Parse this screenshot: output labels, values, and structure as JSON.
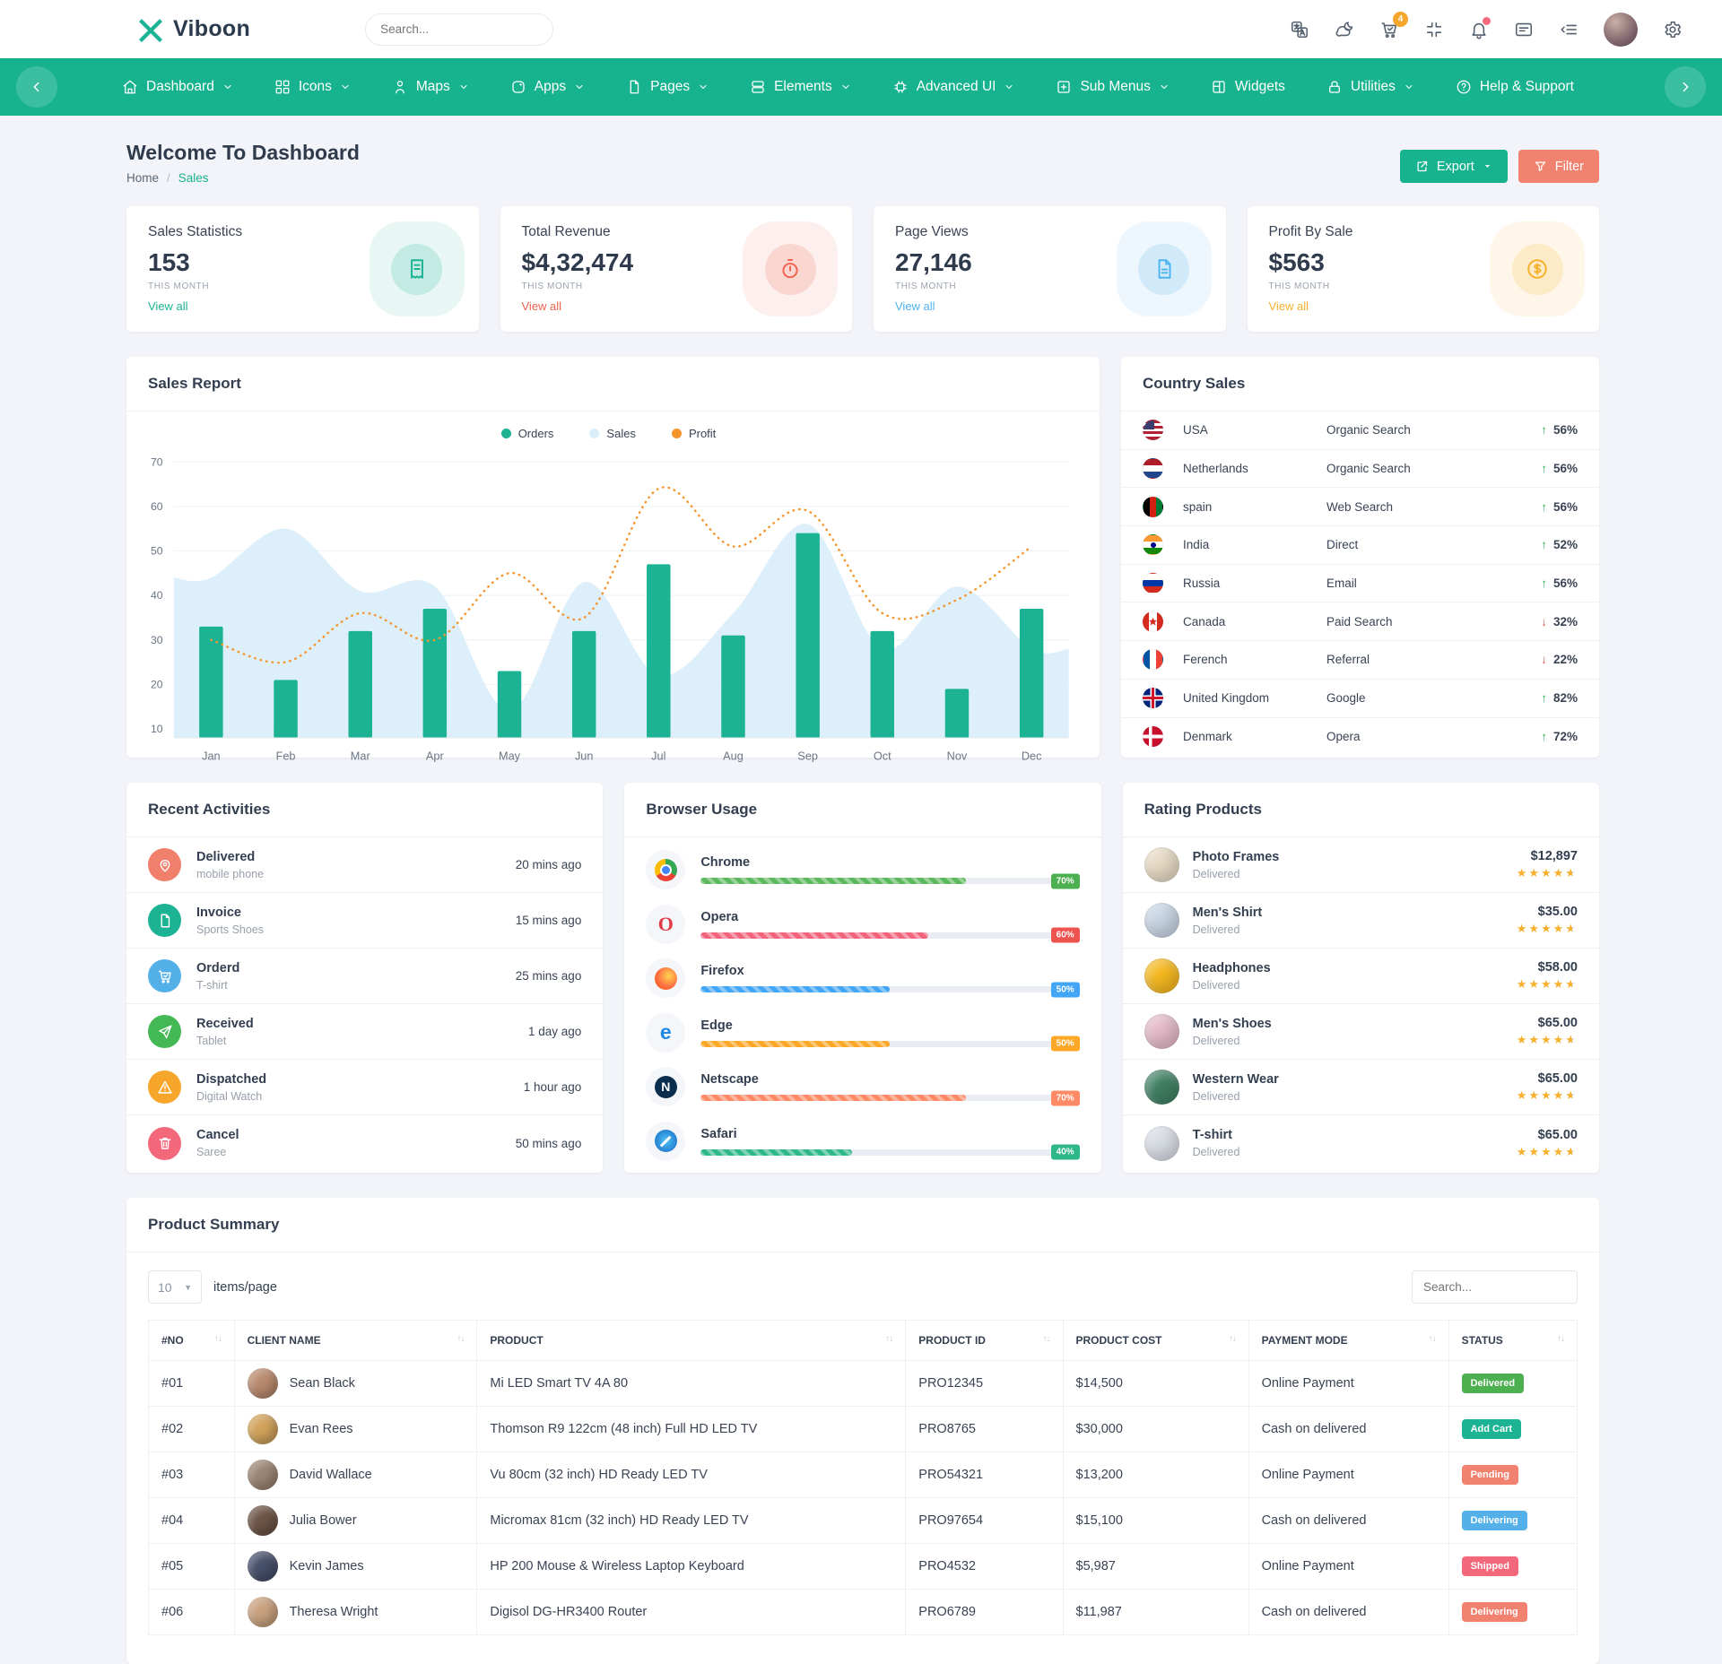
{
  "header": {
    "logo_text": "Viboon",
    "search_placeholder": "Search...",
    "actions": [
      {
        "name": "translate",
        "label": "translate-icon"
      },
      {
        "name": "cloud-moon",
        "label": "dark-mode-icon"
      },
      {
        "name": "cart",
        "label": "cart-icon",
        "badge": "4"
      },
      {
        "name": "compress",
        "label": "fullscreen-icon"
      },
      {
        "name": "bell",
        "label": "notifications-icon",
        "dot": true
      },
      {
        "name": "card",
        "label": "messages-icon"
      },
      {
        "name": "list-chev",
        "label": "sidebar-toggle-icon"
      },
      {
        "name": "avatar",
        "label": "user-avatar"
      },
      {
        "name": "gear",
        "label": "settings-icon"
      }
    ],
    "badge_color": "#f7a62c"
  },
  "navbar": {
    "background": "#17b28e",
    "items": [
      {
        "label": "Dashboard",
        "icon": "home",
        "caret": true
      },
      {
        "label": "Icons",
        "icon": "grid",
        "caret": true
      },
      {
        "label": "Maps",
        "icon": "person",
        "caret": true
      },
      {
        "label": "Apps",
        "icon": "apps",
        "caret": true
      },
      {
        "label": "Pages",
        "icon": "pages",
        "caret": true
      },
      {
        "label": "Elements",
        "icon": "elements",
        "caret": true
      },
      {
        "label": "Advanced UI",
        "icon": "chip",
        "caret": true
      },
      {
        "label": "Sub Menus",
        "icon": "plus-square",
        "caret": true
      },
      {
        "label": "Widgets",
        "icon": "widgets",
        "caret": false
      },
      {
        "label": "Utilities",
        "icon": "lock",
        "caret": true
      },
      {
        "label": "Help & Support",
        "icon": "help",
        "caret": false
      }
    ]
  },
  "page": {
    "title": "Welcome To Dashboard",
    "breadcrumb_home": "Home",
    "breadcrumb_current": "Sales",
    "export_label": "Export",
    "filter_label": "Filter"
  },
  "stat_cards": [
    {
      "title": "Sales Statistics",
      "value": "153",
      "period": "THIS MONTH",
      "link": "View all",
      "accent": "#1bb394",
      "icon": "receipt"
    },
    {
      "title": "Total Revenue",
      "value": "$4,32,474",
      "period": "THIS MONTH",
      "link": "View all",
      "accent": "#f0624e",
      "icon": "stopwatch"
    },
    {
      "title": "Page Views",
      "value": "27,146",
      "period": "THIS MONTH",
      "link": "View all",
      "accent": "#4fb3f0",
      "icon": "doc"
    },
    {
      "title": "Profit By Sale",
      "value": "$563",
      "period": "THIS MONTH",
      "link": "View all",
      "accent": "#f7b02c",
      "icon": "dollar"
    }
  ],
  "chart_data": {
    "type": "combo",
    "title": "Sales Report",
    "categories": [
      "Jan",
      "Feb",
      "Mar",
      "Apr",
      "May",
      "Jun",
      "Jul",
      "Aug",
      "Sep",
      "Oct",
      "Nov",
      "Dec"
    ],
    "series": [
      {
        "name": "Orders",
        "type": "bar",
        "color": "#1bb394",
        "values": [
          33,
          21,
          32,
          37,
          23,
          32,
          47,
          31,
          54,
          32,
          19,
          37
        ]
      },
      {
        "name": "Sales",
        "type": "area",
        "color": "#d9edfa",
        "values": [
          44,
          55,
          41,
          42,
          14,
          43,
          22,
          36,
          56,
          28,
          42,
          28
        ]
      },
      {
        "name": "Profit",
        "type": "dotted-line",
        "color": "#f6952c",
        "values": [
          30,
          25,
          36,
          30,
          45,
          35,
          64,
          51,
          59,
          36,
          39,
          51
        ]
      }
    ],
    "ylim": [
      10,
      70
    ],
    "yticks": [
      10,
      20,
      30,
      40,
      50,
      60,
      70
    ],
    "grid": true,
    "legend_position": "top-center"
  },
  "country_sales": {
    "title": "Country Sales",
    "rows": [
      {
        "country": "USA",
        "flag": "usa",
        "channel": "Organic Search",
        "pct": "56%",
        "dir": "up"
      },
      {
        "country": "Netherlands",
        "flag": "netherlands",
        "channel": "Organic Search",
        "pct": "56%",
        "dir": "up"
      },
      {
        "country": "spain",
        "flag": "spain",
        "channel": "Web Search",
        "pct": "56%",
        "dir": "up"
      },
      {
        "country": "India",
        "flag": "india",
        "channel": "Direct",
        "pct": "52%",
        "dir": "up"
      },
      {
        "country": "Russia",
        "flag": "russia",
        "channel": "Email",
        "pct": "56%",
        "dir": "up"
      },
      {
        "country": "Canada",
        "flag": "canada",
        "channel": "Paid Search",
        "pct": "32%",
        "dir": "down"
      },
      {
        "country": "Ferench",
        "flag": "france",
        "channel": "Referral",
        "pct": "22%",
        "dir": "down"
      },
      {
        "country": "United Kingdom",
        "flag": "uk",
        "channel": "Google",
        "pct": "82%",
        "dir": "up"
      },
      {
        "country": "Denmark",
        "flag": "denmark",
        "channel": "Opera",
        "pct": "72%",
        "dir": "up"
      }
    ]
  },
  "recent_activities": {
    "title": "Recent Activities",
    "items": [
      {
        "title": "Delivered",
        "subtitle": "mobile phone",
        "time": "20 mins ago",
        "icon": "pin",
        "color": "#f0806b"
      },
      {
        "title": "Invoice",
        "subtitle": "Sports Shoes",
        "time": "15 mins ago",
        "icon": "file",
        "color": "#1bb394"
      },
      {
        "title": "Orderd",
        "subtitle": "T-shirt",
        "time": "25 mins ago",
        "icon": "cart",
        "color": "#54b0e8"
      },
      {
        "title": "Received",
        "subtitle": "Tablet",
        "time": "1 day ago",
        "icon": "send",
        "color": "#43b854"
      },
      {
        "title": "Dispatched",
        "subtitle": "Digital Watch",
        "time": "1 hour ago",
        "icon": "alert",
        "color": "#f7a62c"
      },
      {
        "title": "Cancel",
        "subtitle": "Saree",
        "time": "50 mins ago",
        "icon": "trash",
        "color": "#f4687c"
      }
    ]
  },
  "browser_usage": {
    "title": "Browser Usage",
    "items": [
      {
        "name": "Chrome",
        "pct": 70,
        "bar_color": "#5cb85c",
        "badge_color": "#4caf50",
        "brand": "chrome",
        "letter": ""
      },
      {
        "name": "Opera",
        "pct": 60,
        "bar_color": "#f1647c",
        "badge_color": "#ef5350",
        "brand": "opera",
        "letter": "O"
      },
      {
        "name": "Firefox",
        "pct": 50,
        "bar_color": "#42a5f5",
        "badge_color": "#42a5f5",
        "brand": "firefox",
        "letter": ""
      },
      {
        "name": "Edge",
        "pct": 50,
        "bar_color": "#ffa726",
        "badge_color": "#ffa726",
        "brand": "edge",
        "letter": "e"
      },
      {
        "name": "Netscape",
        "pct": 70,
        "bar_color": "#ff8a65",
        "badge_color": "#ff8a65",
        "brand": "netscape",
        "letter": "N"
      },
      {
        "name": "Safari",
        "pct": 40,
        "bar_color": "#2eb88a",
        "badge_color": "#2eb88a",
        "brand": "safari",
        "letter": ""
      }
    ]
  },
  "rating_products": {
    "title": "Rating Products",
    "items": [
      {
        "name": "Photo Frames",
        "status": "Delivered",
        "price": "$12,897",
        "rating": 4.5,
        "thumb": "#e6d9c3"
      },
      {
        "name": "Men's Shirt",
        "status": "Delivered",
        "price": "$35.00",
        "rating": 4.5,
        "thumb": "#c7d4e2"
      },
      {
        "name": "Headphones",
        "status": "Delivered",
        "price": "$58.00",
        "rating": 4.5,
        "thumb": "#f5b81f"
      },
      {
        "name": "Men's Shoes",
        "status": "Delivered",
        "price": "$65.00",
        "rating": 4.5,
        "thumb": "#e3b9c8"
      },
      {
        "name": "Western Wear",
        "status": "Delivered",
        "price": "$65.00",
        "rating": 4.5,
        "thumb": "#3f7f63"
      },
      {
        "name": "T-shirt",
        "status": "Delivered",
        "price": "$65.00",
        "rating": 4.5,
        "thumb": "#d8dde4"
      }
    ]
  },
  "product_summary": {
    "title": "Product Summary",
    "items_per_page": "10",
    "items_per_page_label": "items/page",
    "search_placeholder": "Search...",
    "columns": [
      "#NO",
      "CLIENT NAME",
      "PRODUCT",
      "PRODUCT ID",
      "PRODUCT COST",
      "PAYMENT MODE",
      "STATUS"
    ],
    "rows": [
      {
        "no": "#01",
        "client": "Sean Black",
        "product": "Mi LED Smart TV 4A 80",
        "product_id": "PRO12345",
        "cost": "$14,500",
        "payment": "Online Payment",
        "status": "Delivered",
        "status_color": "#4caf50",
        "avatar": "#b98a6e"
      },
      {
        "no": "#02",
        "client": "Evan Rees",
        "product": "Thomson R9 122cm (48 inch) Full HD LED TV",
        "product_id": "PRO8765",
        "cost": "$30,000",
        "payment": "Cash on delivered",
        "status": "Add Cart",
        "status_color": "#1bb394",
        "avatar": "#d1a35c"
      },
      {
        "no": "#03",
        "client": "David Wallace",
        "product": "Vu 80cm (32 inch) HD Ready LED TV",
        "product_id": "PRO54321",
        "cost": "$13,200",
        "payment": "Online Payment",
        "status": "Pending",
        "status_color": "#f0826f",
        "avatar": "#9b8574"
      },
      {
        "no": "#04",
        "client": "Julia Bower",
        "product": "Micromax 81cm (32 inch) HD Ready LED TV",
        "product_id": "PRO97654",
        "cost": "$15,100",
        "payment": "Cash on delivered",
        "status": "Delivering",
        "status_color": "#54b0e8",
        "avatar": "#6d5446"
      },
      {
        "no": "#05",
        "client": "Kevin James",
        "product": "HP 200 Mouse & Wireless Laptop Keyboard",
        "product_id": "PRO4532",
        "cost": "$5,987",
        "payment": "Online Payment",
        "status": "Shipped",
        "status_color": "#f4687c",
        "avatar": "#47506b"
      },
      {
        "no": "#06",
        "client": "Theresa Wright",
        "product": "Digisol DG-HR3400 Router",
        "product_id": "PRO6789",
        "cost": "$11,987",
        "payment": "Cash on delivered",
        "status": "Delivering",
        "status_color": "#f0826f",
        "avatar": "#c9a27f"
      }
    ]
  }
}
